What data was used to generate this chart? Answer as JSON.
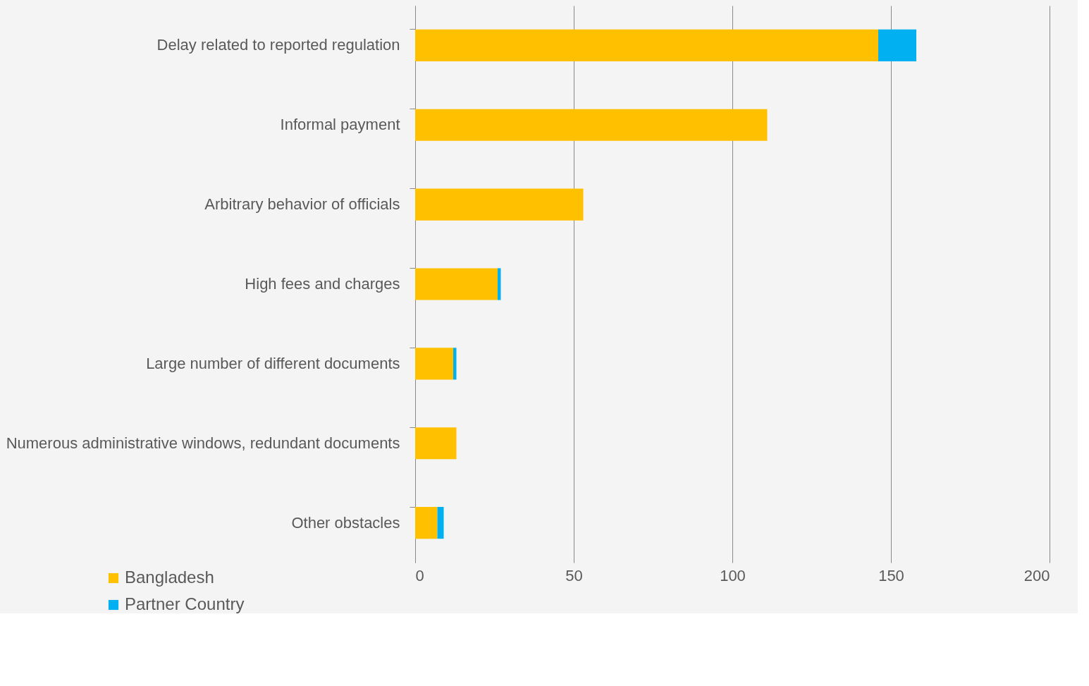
{
  "chart_data": {
    "type": "bar",
    "orientation": "horizontal",
    "stacked": true,
    "categories": [
      "Delay related to reported regulation",
      "Informal payment",
      "Arbitrary behavior of officials",
      "High fees and charges",
      "Large number of different documents",
      "Numerous administrative windows, redundant documents",
      "Other obstacles"
    ],
    "series": [
      {
        "name": "Bangladesh",
        "color": "#ffc000",
        "values": [
          146,
          111,
          53,
          26,
          12,
          13,
          7
        ]
      },
      {
        "name": "Partner Country",
        "color": "#00b0f0",
        "values": [
          12,
          0,
          0,
          1,
          1,
          0,
          2
        ]
      }
    ],
    "xlim": [
      0,
      200
    ],
    "xticks": [
      0,
      50,
      100,
      150,
      200
    ],
    "grid": "x",
    "legend": "bottom left"
  }
}
